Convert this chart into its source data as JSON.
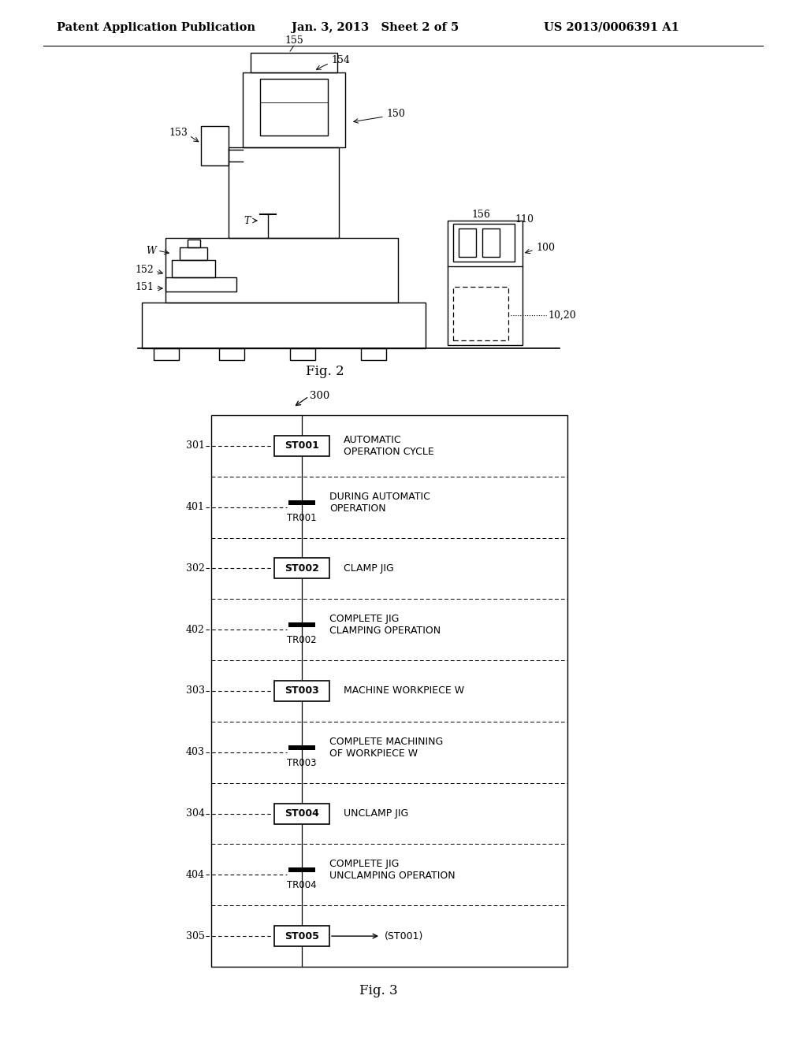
{
  "header_left": "Patent Application Publication",
  "header_mid": "Jan. 3, 2013   Sheet 2 of 5",
  "header_right": "US 2013/0006391 A1",
  "fig2_caption": "Fig. 2",
  "fig3_caption": "Fig. 3",
  "fig3_label": "300",
  "diagram_rows": [
    {
      "left_label": "301",
      "box_label": "ST001",
      "right_text": "AUTOMATIC\nOPERATION CYCLE",
      "type": "step",
      "dashed_top": false
    },
    {
      "left_label": "401",
      "box_label": "TR001",
      "right_text": "DURING AUTOMATIC\nOPERATION",
      "type": "transition",
      "dashed_top": true
    },
    {
      "left_label": "302",
      "box_label": "ST002",
      "right_text": "CLAMP JIG",
      "type": "step",
      "dashed_top": true
    },
    {
      "left_label": "402",
      "box_label": "TR002",
      "right_text": "COMPLETE JIG\nCLAMPING OPERATION",
      "type": "transition",
      "dashed_top": true
    },
    {
      "left_label": "303",
      "box_label": "ST003",
      "right_text": "MACHINE WORKPIECE W",
      "type": "step",
      "dashed_top": true
    },
    {
      "left_label": "403",
      "box_label": "TR003",
      "right_text": "COMPLETE MACHINING\nOF WORKPIECE W",
      "type": "transition",
      "dashed_top": true
    },
    {
      "left_label": "304",
      "box_label": "ST004",
      "right_text": "UNCLAMP JIG",
      "type": "step",
      "dashed_top": true
    },
    {
      "left_label": "404",
      "box_label": "TR004",
      "right_text": "COMPLETE JIG\nUNCLAMPING OPERATION",
      "type": "transition",
      "dashed_top": true
    },
    {
      "left_label": "305",
      "box_label": "ST005",
      "right_text": "(ST001)",
      "type": "end_step",
      "dashed_top": true
    }
  ],
  "bg_color": "#ffffff",
  "line_color": "#000000",
  "text_color": "#000000"
}
